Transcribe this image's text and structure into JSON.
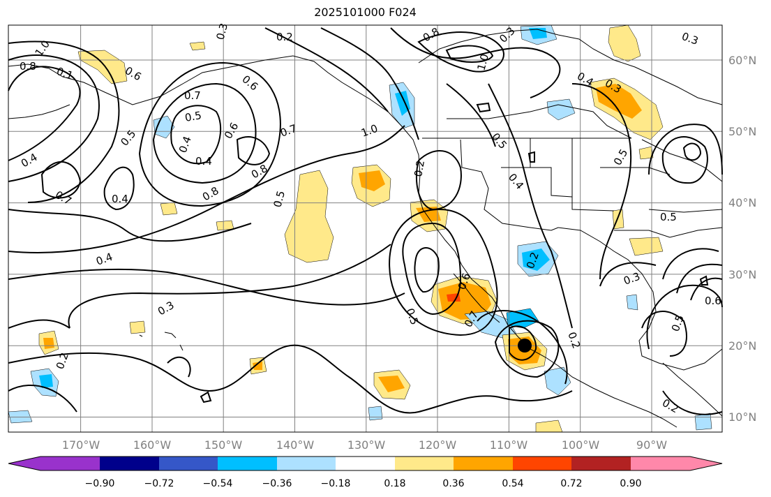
{
  "title": "2025101000 F024",
  "map": {
    "lon_range": [
      -180,
      -80
    ],
    "lat_range": [
      8,
      65
    ],
    "graticule_step_deg": 10,
    "lon_labels": [
      "170°W",
      "160°W",
      "150°W",
      "140°W",
      "130°W",
      "120°W",
      "110°W",
      "100°W",
      "90°W"
    ],
    "lat_labels": [
      "10°N",
      "20°N",
      "30°N",
      "40°N",
      "50°N",
      "60°N"
    ],
    "storm_marker": {
      "lon": -109.5,
      "lat": 20.0
    }
  },
  "contours": {
    "labels": [
      "1.0",
      "0.8",
      "0.1",
      "0.6",
      "0.3",
      "0.2",
      "0.6",
      "0.8",
      "1.0",
      "0.3",
      "0.7",
      "0.5",
      "0.4",
      "0.6",
      "0.4",
      "0.5",
      "0.7",
      "0.8",
      "0.4",
      "0.4",
      "0.8",
      "0.5",
      "0.7",
      "0.4",
      "1.0",
      "0.2",
      "0.5",
      "0.4",
      "0.4",
      "0.3",
      "0.5",
      "0.3",
      "0.5",
      "0.2",
      "0.5",
      "0.6",
      "0.7",
      "0.2",
      "0.3",
      "0.5",
      "0.6",
      "0.2",
      "0.2",
      "0.3"
    ]
  },
  "colorbar": {
    "ticks": [
      "−0.90",
      "−0.72",
      "−0.54",
      "−0.36",
      "−0.18",
      "0.18",
      "0.36",
      "0.54",
      "0.72",
      "0.90"
    ],
    "colors": [
      "#9932cc",
      "#00008b",
      "#3557c8",
      "#00bfff",
      "#ade1ff",
      "#ffffff",
      "#ffe98a",
      "#ffa500",
      "#ff4500",
      "#b22222",
      "#ff88aa"
    ]
  }
}
